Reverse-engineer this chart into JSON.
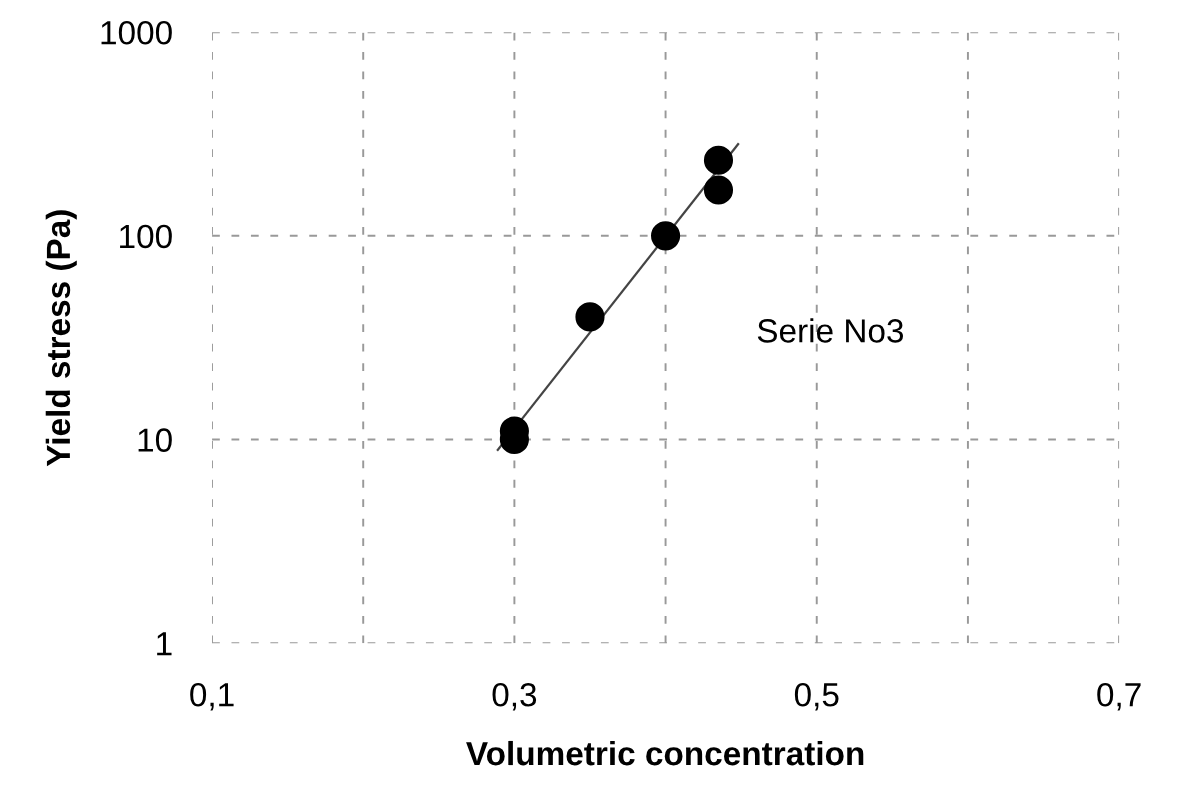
{
  "chart_data": {
    "type": "scatter",
    "xlabel": "Volumetric concentration",
    "ylabel": "Yield stress (Pa)",
    "log": "y",
    "grid": true,
    "xlim": [
      0.1,
      0.7
    ],
    "xticks": [
      {
        "value": 0.1,
        "label": "0,1"
      },
      {
        "value": 0.2,
        "label": null
      },
      {
        "value": 0.3,
        "label": "0,3"
      },
      {
        "value": 0.4,
        "label": null
      },
      {
        "value": 0.5,
        "label": "0,5"
      },
      {
        "value": 0.6,
        "label": null
      },
      {
        "value": 0.7,
        "label": "0,7"
      }
    ],
    "ylim": [
      1,
      1000
    ],
    "yticks": [
      1,
      10,
      100,
      1000
    ],
    "series": [
      {
        "name": "Serie No3",
        "marker": "circle",
        "color": "#000000",
        "x": [
          0.3,
          0.3,
          0.35,
          0.4,
          0.435,
          0.435
        ],
        "values": [
          11,
          10,
          40,
          100,
          235,
          168
        ]
      },
      {
        "type": "line",
        "color": "#444444",
        "line_style": "solid",
        "marker": "none",
        "x": [
          0.289,
          0.448
        ],
        "values": [
          8.9,
          282
        ]
      }
    ]
  }
}
